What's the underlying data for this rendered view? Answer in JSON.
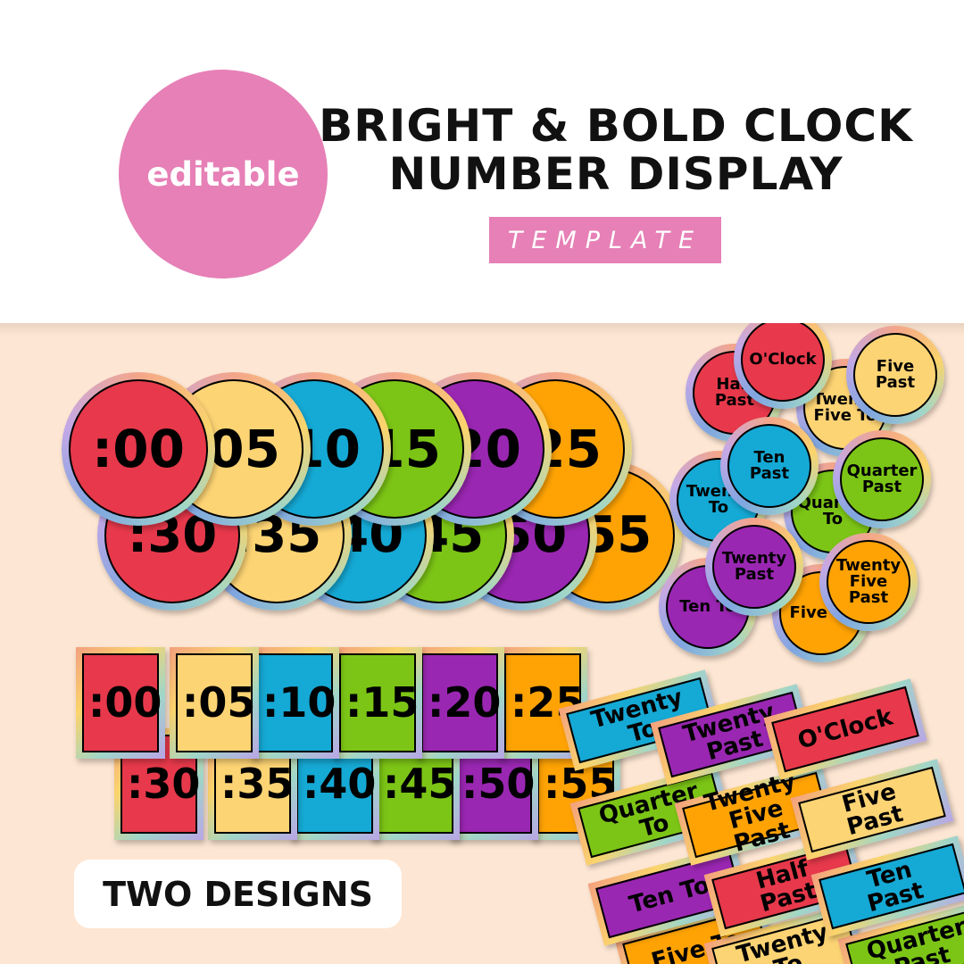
{
  "header": {
    "badge": "editable",
    "title_line1": "BRIGHT & BOLD CLOCK",
    "title_line2": "NUMBER DISPLAY",
    "subtitle": "TEMPLATE"
  },
  "colors": {
    "red": "#e7394b",
    "yellow": "#fdd474",
    "blue": "#15a9d5",
    "green": "#7cc516",
    "purple": "#9a27b2",
    "orange": "#ffa304",
    "pink": "#e680b6",
    "background": "#fde6d3"
  },
  "big_circles_row2": [
    {
      "label": ":55",
      "color": "orange"
    },
    {
      "label": ":50",
      "color": "purple"
    },
    {
      "label": ":45",
      "color": "green"
    },
    {
      "label": ":40",
      "color": "blue"
    },
    {
      "label": ":35",
      "color": "yellow"
    },
    {
      "label": ":30",
      "color": "red"
    }
  ],
  "big_circles_row1": [
    {
      "label": ":25",
      "color": "orange"
    },
    {
      "label": ":20",
      "color": "purple"
    },
    {
      "label": ":15",
      "color": "green"
    },
    {
      "label": ":10",
      "color": "blue"
    },
    {
      "label": ":05",
      "color": "yellow"
    },
    {
      "label": ":00",
      "color": "red"
    }
  ],
  "squares_row2": [
    {
      "label": ":55",
      "color": "orange"
    },
    {
      "label": ":50",
      "color": "purple"
    },
    {
      "label": ":45",
      "color": "green"
    },
    {
      "label": ":40",
      "color": "blue"
    },
    {
      "label": ":35",
      "color": "yellow"
    },
    {
      "label": ":30",
      "color": "red"
    }
  ],
  "squares_row1": [
    {
      "label": ":25",
      "color": "orange"
    },
    {
      "label": ":20",
      "color": "purple"
    },
    {
      "label": ":15",
      "color": "green"
    },
    {
      "label": ":10",
      "color": "blue"
    },
    {
      "label": ":05",
      "color": "yellow"
    },
    {
      "label": ":00",
      "color": "red"
    }
  ],
  "word_circles": [
    {
      "label": "Ten To",
      "color": "purple"
    },
    {
      "label": "Five To",
      "color": "orange"
    },
    {
      "label": "Twenty To",
      "color": "blue"
    },
    {
      "label": "Quarter To",
      "color": "green"
    },
    {
      "label": "Half Past",
      "color": "red"
    },
    {
      "label": "Twenty Five To",
      "color": "yellow"
    },
    {
      "label": "O'Clock",
      "color": "red"
    },
    {
      "label": "Five Past",
      "color": "yellow"
    },
    {
      "label": "Ten Past",
      "color": "blue"
    },
    {
      "label": "Quarter Past",
      "color": "green"
    },
    {
      "label": "Twenty Past",
      "color": "purple"
    },
    {
      "label": "Twenty Five Past",
      "color": "orange"
    }
  ],
  "word_labels": [
    {
      "label": "Five To",
      "color": "orange"
    },
    {
      "label": "Twenty To",
      "color": "yellow"
    },
    {
      "label": "Quarter Past",
      "color": "green"
    },
    {
      "label": "Twenty To",
      "color": "blue"
    },
    {
      "label": "Quarter To",
      "color": "green"
    },
    {
      "label": "Ten To",
      "color": "purple"
    },
    {
      "label": "Twenty Past",
      "color": "purple"
    },
    {
      "label": "Twenty Five Past",
      "color": "orange"
    },
    {
      "label": "Half Past",
      "color": "red"
    },
    {
      "label": "O'Clock",
      "color": "red"
    },
    {
      "label": "Five Past",
      "color": "yellow"
    },
    {
      "label": "Ten Past",
      "color": "blue"
    }
  ],
  "footer_badge": "TWO DESIGNS"
}
